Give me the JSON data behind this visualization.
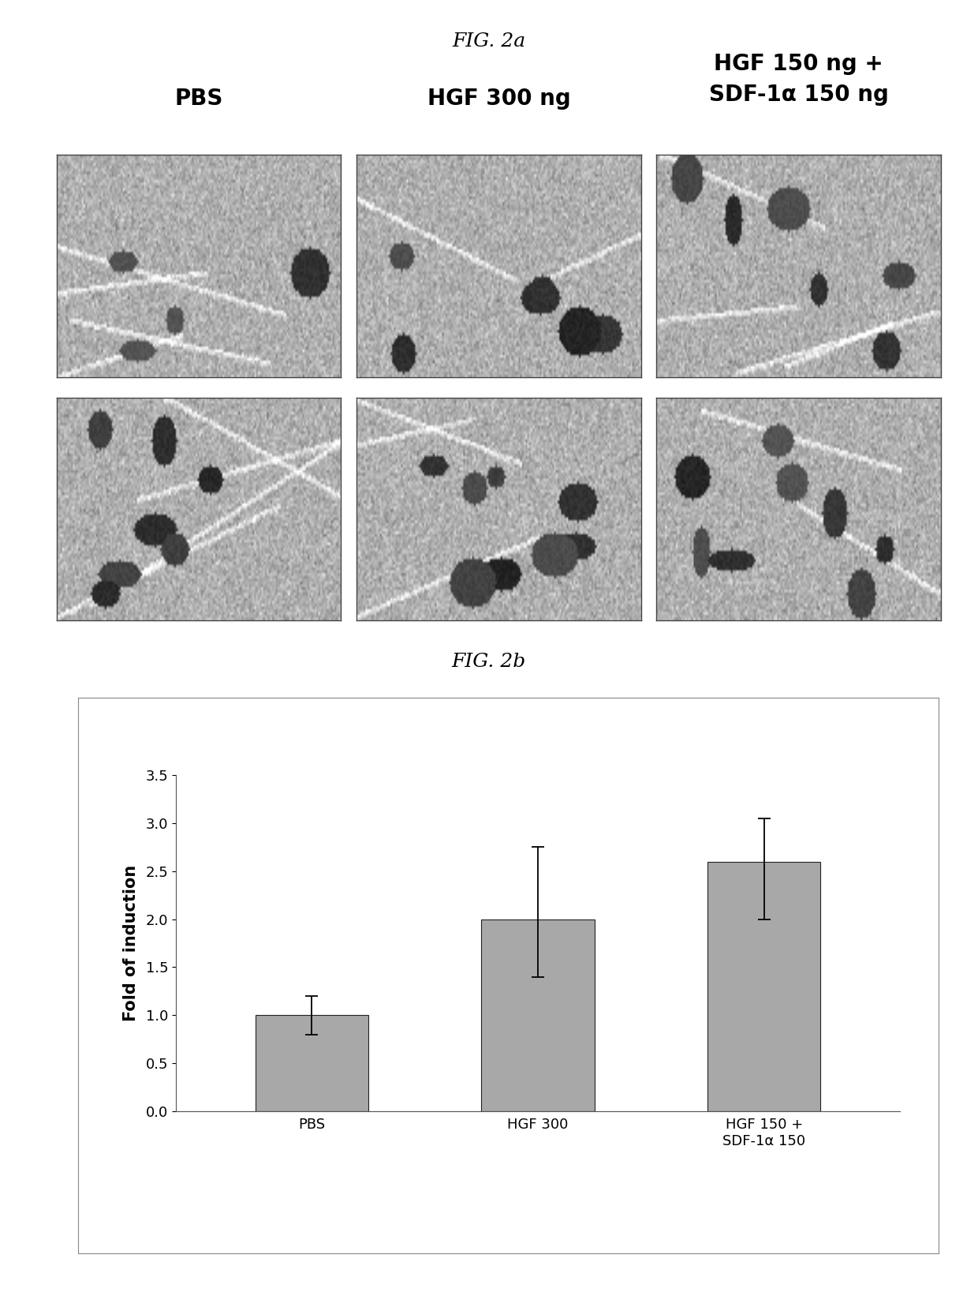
{
  "fig2a_title": "FIG. 2a",
  "fig2b_title": "FIG. 2b",
  "panel_labels_line1": [
    "PBS",
    "HGF 300 ng",
    "HGF 150 ng +"
  ],
  "panel_labels_line2": [
    "",
    "",
    "SDF-1α 150 ng"
  ],
  "bar_categories": [
    "PBS",
    "HGF 300",
    "HGF 150 +\nSDF-1α 150"
  ],
  "bar_values": [
    1.0,
    2.0,
    2.6
  ],
  "bar_errors_upper": [
    0.2,
    0.75,
    0.45
  ],
  "bar_errors_lower": [
    0.2,
    0.6,
    0.6
  ],
  "bar_color": "#a8a8a8",
  "bar_edgecolor": "#222222",
  "ylabel": "Fold of induction",
  "ylim": [
    0,
    3.5
  ],
  "yticks": [
    0,
    0.5,
    1.0,
    1.5,
    2.0,
    2.5,
    3.0,
    3.5
  ],
  "background_color": "#ffffff",
  "chart_bg_color": "#f0efea",
  "title_fontsize": 18,
  "panel_label_fontsize": 20,
  "tick_fontsize": 13,
  "ylabel_fontsize": 15,
  "bar_width": 0.5
}
